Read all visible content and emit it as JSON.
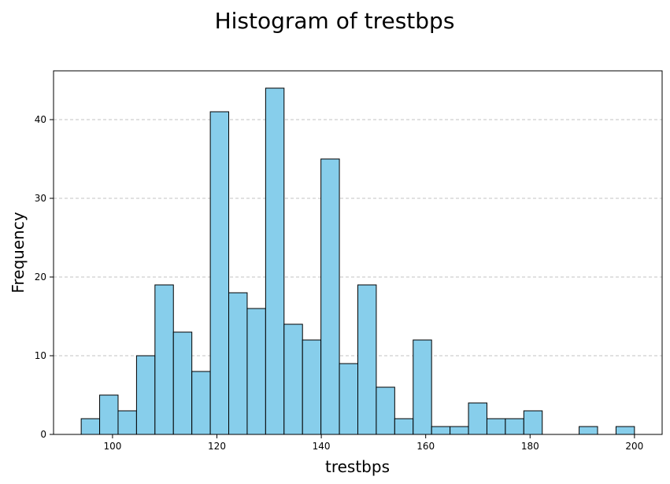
{
  "chart_data": {
    "type": "bar",
    "title": "Histogram of trestbps",
    "xlabel": "trestbps",
    "ylabel": "Frequency",
    "xlim": [
      88.7,
      205.3
    ],
    "ylim": [
      0,
      46.2
    ],
    "grid": {
      "y": true,
      "x": false,
      "style": "dashed"
    },
    "xticks": [
      100,
      120,
      140,
      160,
      180,
      200
    ],
    "yticks": [
      0,
      10,
      20,
      30,
      40
    ],
    "bin_start": 94,
    "bin_width": 3.5333,
    "bins": 30,
    "values": [
      2,
      5,
      3,
      10,
      19,
      13,
      8,
      41,
      18,
      16,
      44,
      14,
      12,
      35,
      9,
      19,
      6,
      2,
      12,
      1,
      1,
      4,
      2,
      2,
      3,
      0,
      0,
      1,
      0,
      1
    ],
    "colors": {
      "bar_fill": "#87CEEB",
      "bar_edge": "#000000"
    }
  }
}
